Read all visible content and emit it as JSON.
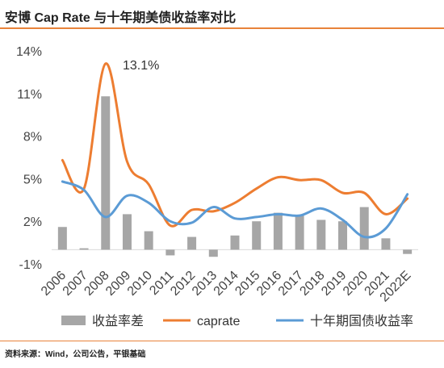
{
  "title": "安博 Cap Rate 与十年期美债收益率对比",
  "source": "资料来源：Wind，公司公告，平银基础",
  "chart_data": {
    "type": "bar+line",
    "categories": [
      "2006",
      "2007",
      "2008",
      "2009",
      "2010",
      "2011",
      "2012",
      "2013",
      "2014",
      "2015",
      "2016",
      "2017",
      "2018",
      "2019",
      "2020",
      "2021",
      "2022E"
    ],
    "y_ticks": [
      "14%",
      "11%",
      "8%",
      "5%",
      "2%",
      "-1%"
    ],
    "ylim": [
      -1,
      14
    ],
    "annotation": "13.1%",
    "series": [
      {
        "name": "收益率差",
        "type": "bar",
        "color": "#a6a6a6",
        "values": [
          1.6,
          0.1,
          10.8,
          2.5,
          1.3,
          -0.4,
          0.9,
          -0.5,
          1.0,
          2.0,
          2.6,
          2.4,
          2.1,
          2.0,
          3.0,
          0.8,
          -0.3
        ]
      },
      {
        "name": "caprate",
        "type": "line",
        "color": "#ed7d31",
        "values": [
          6.3,
          4.3,
          13.1,
          6.2,
          4.6,
          1.7,
          2.8,
          2.7,
          3.3,
          4.3,
          5.1,
          4.9,
          4.9,
          4.0,
          4.0,
          2.5,
          3.6
        ]
      },
      {
        "name": "十年期国债收益率",
        "type": "line",
        "color": "#5b9bd5",
        "values": [
          4.8,
          4.2,
          2.3,
          3.8,
          3.3,
          2.0,
          1.9,
          3.0,
          2.2,
          2.3,
          2.5,
          2.4,
          2.9,
          2.1,
          0.9,
          1.5,
          3.9
        ]
      }
    ],
    "legend_position": "bottom",
    "grid": false
  }
}
